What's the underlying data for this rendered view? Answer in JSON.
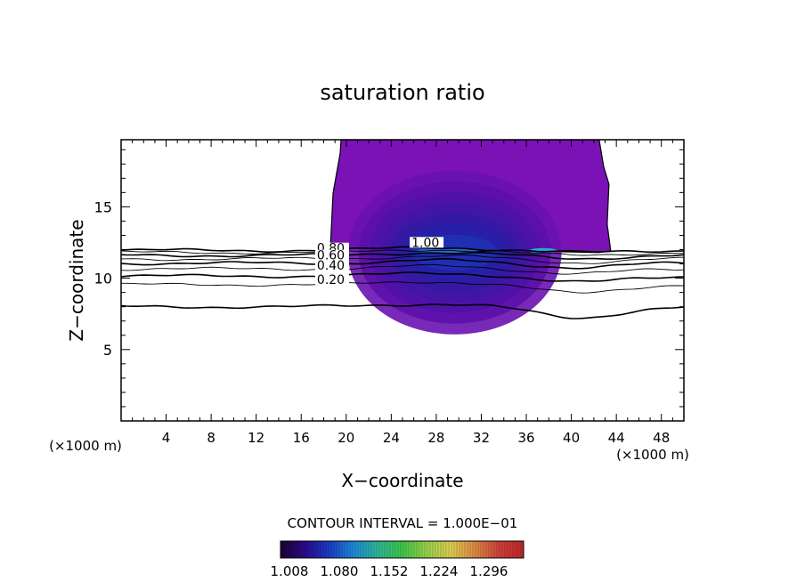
{
  "chart_data": {
    "type": "contour",
    "title": "saturation ratio",
    "xlabel": "X−coordinate",
    "ylabel": "Z−coordinate",
    "x_unit_left": "(×1000 m)",
    "x_unit_right": "(×1000 m)",
    "xlim": [
      0,
      50
    ],
    "ylim": [
      0,
      19.7
    ],
    "x_ticks": [
      4,
      8,
      12,
      16,
      20,
      24,
      28,
      32,
      36,
      40,
      44,
      48
    ],
    "y_ticks": [
      5,
      10,
      15
    ],
    "contour_interval_text": "CONTOUR INTERVAL = 1.000E−01",
    "contour_labels": [
      {
        "text": "1.00",
        "x": 25.8,
        "z": 12.2
      },
      {
        "text": "0.80",
        "x": 17.4,
        "z": 11.8
      },
      {
        "text": "0.60",
        "x": 17.4,
        "z": 11.3
      },
      {
        "text": "0.40",
        "x": 17.4,
        "z": 10.6
      },
      {
        "text": "0.20",
        "x": 17.4,
        "z": 9.6
      }
    ],
    "supersaturated_region": {
      "x_range": [
        18.2,
        43.5
      ],
      "z_range": [
        11.8,
        19.7
      ]
    },
    "colorbar": {
      "labels": [
        "1.008",
        "1.080",
        "1.152",
        "1.224",
        "1.296"
      ],
      "colors": [
        "#1e0033",
        "#2a0a8c",
        "#1a3cc8",
        "#1e8ad8",
        "#30b89a",
        "#3ec84a",
        "#9ad24c",
        "#e0cf52",
        "#e08a46",
        "#d0403a",
        "#c02828"
      ]
    }
  }
}
